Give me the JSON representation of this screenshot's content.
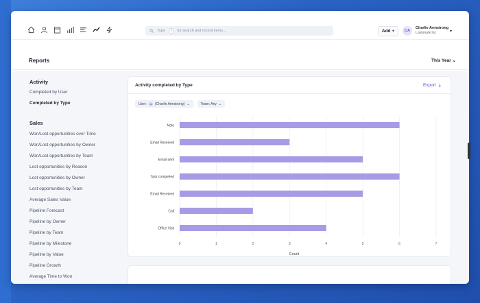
{
  "topbar": {
    "nav_icons": [
      "home-icon",
      "user-icon",
      "calendar-icon",
      "bar-chart-icon",
      "list-icon",
      "trend-icon",
      "bolt-icon"
    ],
    "search": {
      "prefix": "Type",
      "key": "/",
      "suffix": "for search and recent items..."
    },
    "add_label": "Add +",
    "avatar_initials": "CA",
    "user_name": "Charlie Armstrong",
    "user_company": "Lookmark Inc"
  },
  "header": {
    "title": "Reports",
    "period": "This Year"
  },
  "sidebar": {
    "activity_title": "Activity",
    "activity_items": [
      "Completed by User",
      "Completed by Type"
    ],
    "sales_title": "Sales",
    "sales_items": [
      "Won/Lost opportunities over Time",
      "Won/Lost opportunities by Owner",
      "Won/Lost opportunities by Team",
      "Lost opportunities by Reason",
      "Lost opportunities by Owner",
      "Lost opportunities by Team",
      "Average Sales Value",
      "Pipeline Forecast",
      "Pipeline by Owner",
      "Pipeline by Team",
      "Pipeline by Milestone",
      "Pipeline by Value",
      "Pipeline Growth",
      "Average Time to Won"
    ]
  },
  "card": {
    "title": "Activity completed by Type",
    "export_label": "Export",
    "filter_user_label": "User:",
    "filter_user_initials": "CA",
    "filter_user_value": "(Charlie Armstrong)",
    "filter_team": "Team: Any"
  },
  "colors": {
    "accent": "#5b4bd6",
    "bar": "#a79be6"
  },
  "chart_data": {
    "type": "bar",
    "orientation": "horizontal",
    "categories": [
      "Note",
      "Email Received",
      "Email sent",
      "Task completed",
      "Email Received",
      "Call",
      "Office Visit"
    ],
    "values": [
      6,
      3,
      5,
      6,
      5,
      2,
      4
    ],
    "xlabel": "Count",
    "xlim": [
      0,
      7
    ],
    "xticks": [
      0,
      1,
      2,
      3,
      4,
      5,
      6,
      7
    ],
    "grid": true
  }
}
